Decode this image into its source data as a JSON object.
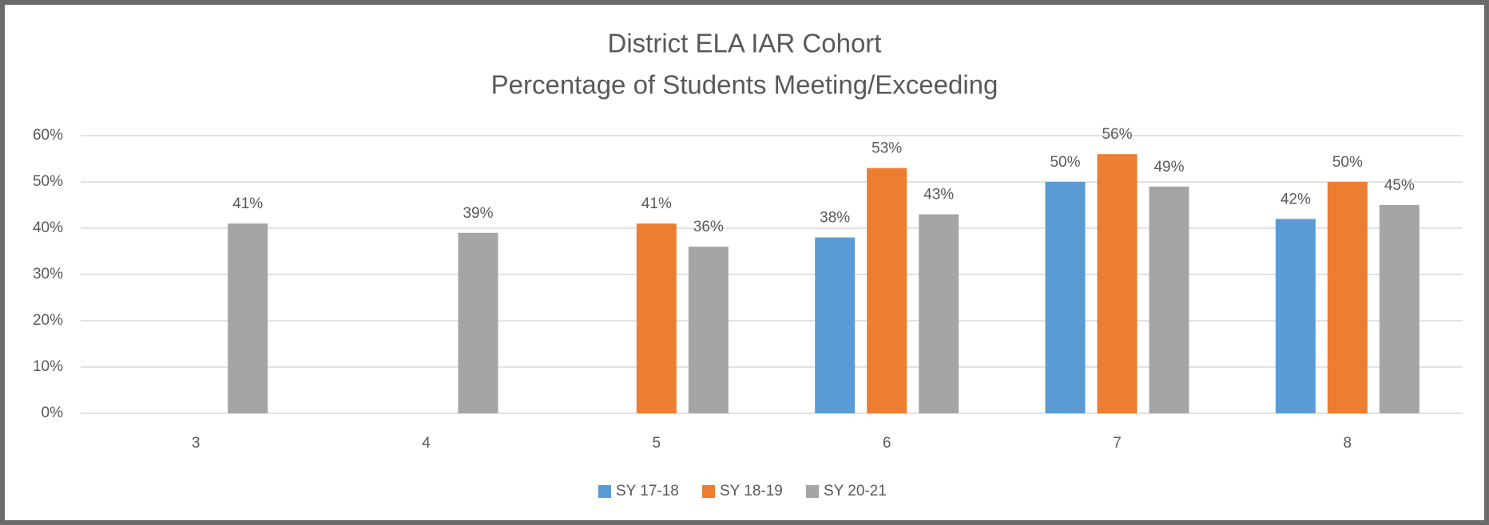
{
  "chart_data": {
    "type": "bar",
    "title": "District ELA IAR Cohort",
    "subtitle": "Percentage of Students Meeting/Exceeding",
    "categories": [
      "3",
      "4",
      "5",
      "6",
      "7",
      "8"
    ],
    "series": [
      {
        "name": "SY 17-18",
        "color": "#5b9bd5",
        "values": [
          null,
          null,
          null,
          38,
          50,
          42
        ],
        "value_labels": [
          null,
          null,
          null,
          "38%",
          "50%",
          "42%"
        ]
      },
      {
        "name": "SY 18-19",
        "color": "#ed7d31",
        "values": [
          null,
          null,
          41,
          53,
          56,
          50
        ],
        "value_labels": [
          null,
          null,
          "41%",
          "53%",
          "56%",
          "50%"
        ]
      },
      {
        "name": "SY 20-21",
        "color": "#a5a5a5",
        "values": [
          41,
          39,
          36,
          43,
          49,
          45
        ],
        "value_labels": [
          "41%",
          "39%",
          "36%",
          "43%",
          "49%",
          "45%"
        ]
      }
    ],
    "ylim": [
      0,
      60
    ],
    "yticks": [
      {
        "value": 0,
        "label": "0%"
      },
      {
        "value": 10,
        "label": "10%"
      },
      {
        "value": 20,
        "label": "20%"
      },
      {
        "value": 30,
        "label": "30%"
      },
      {
        "value": 40,
        "label": "40%"
      },
      {
        "value": 50,
        "label": "50%"
      },
      {
        "value": 60,
        "label": "60%"
      }
    ],
    "grid": true,
    "legend": "bottom"
  }
}
